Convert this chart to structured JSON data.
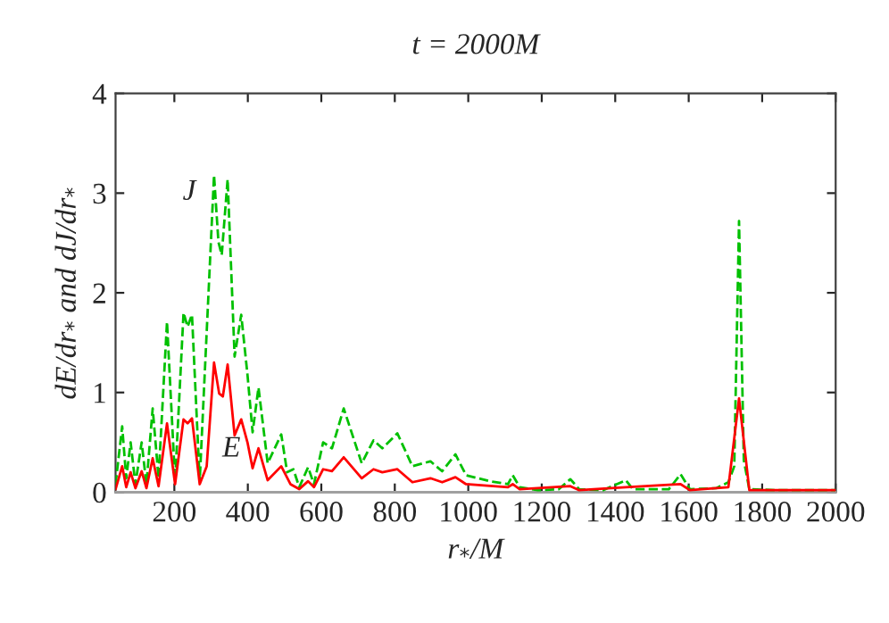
{
  "chart_data": {
    "type": "line",
    "title": "t = 2000M",
    "xlabel": "r$_{*}$/M",
    "ylabel": "dE/dr$_{*}$ and dJ/dr$_{*}$",
    "xlim": [
      40,
      2000
    ],
    "xticks": [
      200,
      400,
      600,
      800,
      1000,
      1200,
      1400,
      1600,
      1800,
      2000
    ],
    "ylim": [
      0,
      4
    ],
    "yticks": [
      0,
      1,
      2,
      3,
      4
    ],
    "grid": false,
    "legend": false,
    "marker": "none",
    "ref_lines": [
      {
        "axis": "y",
        "value": 0,
        "color": "#a0a0a0"
      }
    ],
    "series": [
      {
        "name": "J",
        "color": "#00c000",
        "line_style": "dashed",
        "x": [
          40,
          58,
          69,
          81,
          94,
          111,
          124,
          141,
          157,
          180,
          202,
          225,
          236,
          248,
          269,
          308,
          320,
          329,
          345,
          364,
          382,
          399,
          413,
          429,
          454,
          491,
          507,
          524,
          540,
          564,
          580,
          605,
          629,
          661,
          710,
          742,
          766,
          807,
          848,
          897,
          929,
          965,
          994,
          1059,
          1108,
          1121,
          1140,
          1189,
          1246,
          1278,
          1302,
          1367,
          1429,
          1448,
          1546,
          1578,
          1603,
          1675,
          1708,
          1724,
          1737,
          1750,
          1765,
          1838,
          2000
        ],
        "values": [
          0.08,
          0.66,
          0.14,
          0.5,
          0.08,
          0.5,
          0.08,
          0.84,
          0.14,
          1.71,
          0.11,
          1.8,
          1.66,
          1.78,
          0.11,
          3.18,
          2.51,
          2.38,
          3.14,
          1.36,
          1.78,
          1.18,
          0.6,
          1.05,
          0.29,
          0.58,
          0.2,
          0.23,
          0.05,
          0.25,
          0.08,
          0.5,
          0.44,
          0.84,
          0.29,
          0.52,
          0.44,
          0.59,
          0.26,
          0.31,
          0.21,
          0.38,
          0.17,
          0.11,
          0.08,
          0.17,
          0.05,
          0.02,
          0.03,
          0.13,
          0.03,
          0.02,
          0.12,
          0.03,
          0.03,
          0.18,
          0.03,
          0.04,
          0.1,
          0.26,
          2.72,
          0.32,
          0.03,
          0.02,
          0.02
        ]
      },
      {
        "name": "E",
        "color": "#ff0000",
        "line_style": "solid",
        "x": [
          40,
          58,
          69,
          81,
          94,
          111,
          124,
          141,
          157,
          180,
          202,
          225,
          236,
          248,
          269,
          288,
          308,
          322,
          332,
          345,
          364,
          382,
          399,
          413,
          429,
          454,
          491,
          516,
          540,
          564,
          580,
          605,
          629,
          661,
          710,
          742,
          766,
          807,
          848,
          897,
          929,
          965,
          994,
          1108,
          1121,
          1140,
          1278,
          1302,
          1429,
          1578,
          1603,
          1708,
          1737,
          1765,
          2000
        ],
        "values": [
          0.03,
          0.26,
          0.05,
          0.2,
          0.04,
          0.21,
          0.04,
          0.34,
          0.06,
          0.69,
          0.08,
          0.73,
          0.69,
          0.74,
          0.08,
          0.26,
          1.3,
          0.99,
          0.96,
          1.28,
          0.57,
          0.73,
          0.5,
          0.24,
          0.44,
          0.12,
          0.26,
          0.08,
          0.03,
          0.11,
          0.05,
          0.23,
          0.21,
          0.35,
          0.14,
          0.23,
          0.2,
          0.23,
          0.1,
          0.14,
          0.1,
          0.15,
          0.08,
          0.05,
          0.08,
          0.03,
          0.06,
          0.02,
          0.05,
          0.08,
          0.02,
          0.05,
          0.94,
          0.02,
          0.02
        ]
      }
    ]
  }
}
